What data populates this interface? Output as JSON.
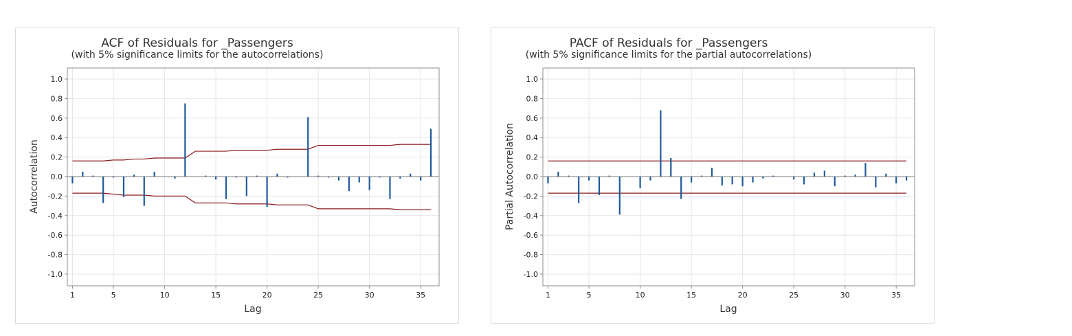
{
  "chart_data": [
    {
      "type": "bar",
      "title": "ACF of Residuals for _Passengers",
      "subtitle": "(with 5% significance limits for the autocorrelations)",
      "xlabel": "Lag",
      "ylabel": "Autocorrelation",
      "xlim": [
        1,
        36
      ],
      "ylim": [
        -1.0,
        1.0
      ],
      "yticks": [
        "1.0",
        "0.8",
        "0.6",
        "0.4",
        "0.2",
        "0.0",
        "-0.2",
        "-0.4",
        "-0.6",
        "-0.8",
        "-1.0"
      ],
      "xticks": [
        "1",
        "5",
        "10",
        "15",
        "20",
        "25",
        "30",
        "35"
      ],
      "grid": true,
      "bar_color": "#1f5a99",
      "limit_color": "#8b1a1a",
      "lags": [
        1,
        2,
        3,
        4,
        5,
        6,
        7,
        8,
        9,
        10,
        11,
        12,
        13,
        14,
        15,
        16,
        17,
        18,
        19,
        20,
        21,
        22,
        23,
        24,
        25,
        26,
        27,
        28,
        29,
        30,
        31,
        32,
        33,
        34,
        35,
        36
      ],
      "values": [
        -0.07,
        0.05,
        0.01,
        -0.27,
        -0.01,
        -0.21,
        0.02,
        -0.3,
        0.05,
        0.0,
        -0.02,
        0.75,
        0.0,
        0.01,
        -0.03,
        -0.23,
        -0.01,
        -0.2,
        0.01,
        -0.31,
        0.03,
        -0.01,
        0.0,
        0.61,
        0.01,
        -0.01,
        -0.04,
        -0.15,
        -0.06,
        -0.14,
        -0.01,
        -0.23,
        -0.02,
        0.03,
        -0.04,
        0.49
      ],
      "upper_limit": [
        0.16,
        0.16,
        0.16,
        0.16,
        0.17,
        0.17,
        0.18,
        0.18,
        0.19,
        0.19,
        0.19,
        0.19,
        0.26,
        0.26,
        0.26,
        0.26,
        0.27,
        0.27,
        0.27,
        0.27,
        0.28,
        0.28,
        0.28,
        0.28,
        0.32,
        0.32,
        0.32,
        0.32,
        0.32,
        0.32,
        0.32,
        0.32,
        0.33,
        0.33,
        0.33,
        0.33
      ],
      "lower_limit": [
        -0.17,
        -0.17,
        -0.17,
        -0.17,
        -0.18,
        -0.19,
        -0.19,
        -0.19,
        -0.2,
        -0.2,
        -0.2,
        -0.2,
        -0.27,
        -0.27,
        -0.27,
        -0.27,
        -0.28,
        -0.28,
        -0.28,
        -0.28,
        -0.29,
        -0.29,
        -0.29,
        -0.29,
        -0.33,
        -0.33,
        -0.33,
        -0.33,
        -0.33,
        -0.33,
        -0.33,
        -0.33,
        -0.34,
        -0.34,
        -0.34,
        -0.34
      ]
    },
    {
      "type": "bar",
      "title": "PACF of Residuals for _Passengers",
      "subtitle": "(with 5% significance limits for the partial autocorrelations)",
      "xlabel": "Lag",
      "ylabel": "Partial Autocorrelation",
      "xlim": [
        1,
        36
      ],
      "ylim": [
        -1.0,
        1.0
      ],
      "yticks": [
        "1.0",
        "0.8",
        "0.6",
        "0.4",
        "0.2",
        "0.0",
        "-0.2",
        "-0.4",
        "-0.6",
        "-0.8",
        "-1.0"
      ],
      "xticks": [
        "1",
        "5",
        "10",
        "15",
        "20",
        "25",
        "30",
        "35"
      ],
      "grid": true,
      "bar_color": "#1f5a99",
      "limit_color": "#8b1a1a",
      "lags": [
        1,
        2,
        3,
        4,
        5,
        6,
        7,
        8,
        9,
        10,
        11,
        12,
        13,
        14,
        15,
        16,
        17,
        18,
        19,
        20,
        21,
        22,
        23,
        24,
        25,
        26,
        27,
        28,
        29,
        30,
        31,
        32,
        33,
        34,
        35,
        36
      ],
      "values": [
        -0.07,
        0.05,
        0.01,
        -0.27,
        -0.04,
        -0.19,
        0.01,
        -0.39,
        0.0,
        -0.12,
        -0.04,
        0.68,
        0.19,
        -0.23,
        -0.06,
        0.01,
        0.09,
        -0.09,
        -0.08,
        -0.1,
        -0.06,
        -0.02,
        0.01,
        0.0,
        -0.03,
        -0.08,
        0.04,
        0.06,
        -0.1,
        0.01,
        0.02,
        0.14,
        -0.11,
        0.03,
        -0.07,
        -0.04
      ],
      "upper_limit": [
        0.16,
        0.16,
        0.16,
        0.16,
        0.16,
        0.16,
        0.16,
        0.16,
        0.16,
        0.16,
        0.16,
        0.16,
        0.16,
        0.16,
        0.16,
        0.16,
        0.16,
        0.16,
        0.16,
        0.16,
        0.16,
        0.16,
        0.16,
        0.16,
        0.16,
        0.16,
        0.16,
        0.16,
        0.16,
        0.16,
        0.16,
        0.16,
        0.16,
        0.16,
        0.16,
        0.16
      ],
      "lower_limit": [
        -0.17,
        -0.17,
        -0.17,
        -0.17,
        -0.17,
        -0.17,
        -0.17,
        -0.17,
        -0.17,
        -0.17,
        -0.17,
        -0.17,
        -0.17,
        -0.17,
        -0.17,
        -0.17,
        -0.17,
        -0.17,
        -0.17,
        -0.17,
        -0.17,
        -0.17,
        -0.17,
        -0.17,
        -0.17,
        -0.17,
        -0.17,
        -0.17,
        -0.17,
        -0.17,
        -0.17,
        -0.17,
        -0.17,
        -0.17,
        -0.17,
        -0.17
      ]
    }
  ]
}
